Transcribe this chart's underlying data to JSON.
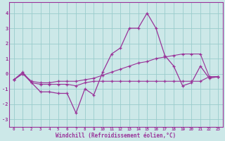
{
  "xlabel": "Windchill (Refroidissement éolien,°C)",
  "background_color": "#cce8e8",
  "grid_color": "#99cccc",
  "line_color": "#993399",
  "ylim": [
    -3.5,
    4.7
  ],
  "xlim": [
    -0.5,
    23.5
  ],
  "yticks": [
    -3,
    -2,
    -1,
    0,
    1,
    2,
    3,
    4
  ],
  "xticks": [
    0,
    1,
    2,
    3,
    4,
    5,
    6,
    7,
    8,
    9,
    10,
    11,
    12,
    13,
    14,
    15,
    16,
    17,
    18,
    19,
    20,
    21,
    22,
    23
  ],
  "hours": [
    0,
    1,
    2,
    3,
    4,
    5,
    6,
    7,
    8,
    9,
    10,
    11,
    12,
    13,
    14,
    15,
    16,
    17,
    18,
    19,
    20,
    21,
    22,
    23
  ],
  "line1": [
    -0.4,
    0.1,
    -0.6,
    -1.2,
    -1.2,
    -1.3,
    -1.3,
    -2.6,
    -1.0,
    -1.4,
    0.1,
    1.3,
    1.7,
    3.0,
    3.0,
    4.0,
    3.0,
    1.2,
    0.5,
    -0.8,
    -0.6,
    0.5,
    -0.3,
    -0.2
  ],
  "line2": [
    -0.4,
    0.0,
    -0.5,
    -0.6,
    -0.6,
    -0.5,
    -0.5,
    -0.5,
    -0.4,
    -0.3,
    -0.1,
    0.1,
    0.3,
    0.5,
    0.7,
    0.8,
    1.0,
    1.1,
    1.2,
    1.3,
    1.3,
    1.3,
    -0.2,
    -0.2
  ],
  "line3": [
    -0.4,
    0.0,
    -0.6,
    -0.7,
    -0.7,
    -0.7,
    -0.7,
    -0.8,
    -0.6,
    -0.5,
    -0.5,
    -0.5,
    -0.5,
    -0.5,
    -0.5,
    -0.5,
    -0.5,
    -0.5,
    -0.5,
    -0.5,
    -0.5,
    -0.5,
    -0.2,
    -0.2
  ]
}
